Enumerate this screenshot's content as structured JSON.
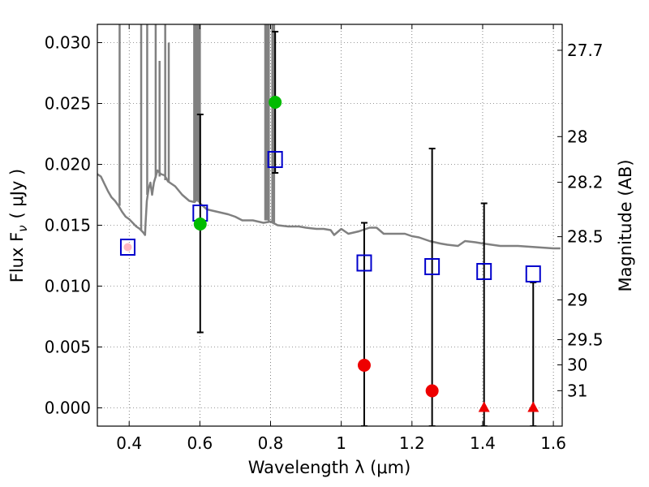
{
  "chart_data": {
    "type": "scatter",
    "xlabel": "Wavelength  λ (μm)",
    "ylabel": "Flux  F",
    "ylabel_sub": "ν",
    "ylabel_unit": "( μJy )",
    "ylabel_right": "Magnitude (AB)",
    "xlim": [
      0.31,
      1.625
    ],
    "ylim": [
      -0.0015,
      0.0315
    ],
    "x_ticks": [
      0.4,
      0.6,
      0.8,
      1.0,
      1.2,
      1.4,
      1.6
    ],
    "x_tick_labels": [
      "0.4",
      "0.6",
      "0.8",
      "1",
      "1.2",
      "1.4",
      "1.6"
    ],
    "y_ticks": [
      0.0,
      0.005,
      0.01,
      0.015,
      0.02,
      0.025,
      0.03
    ],
    "y_tick_labels": [
      "0.000",
      "0.005",
      "0.010",
      "0.015",
      "0.020",
      "0.025",
      "0.030"
    ],
    "right_ticks": [
      {
        "label": "27.7",
        "flux": 0.02937
      },
      {
        "label": "28",
        "flux": 0.02228
      },
      {
        "label": "28.2",
        "flux": 0.01853
      },
      {
        "label": "28.5",
        "flux": 0.01406
      },
      {
        "label": "29",
        "flux": 0.00887
      },
      {
        "label": "29.5",
        "flux": 0.0056
      },
      {
        "label": "30",
        "flux": 0.00353
      },
      {
        "label": "31",
        "flux": 0.00141
      }
    ],
    "grid": true,
    "colors": {
      "model": "#808080",
      "model_mag": "#0000cc",
      "green": "#00bb00",
      "red": "#ee0000",
      "error": "#000000"
    },
    "series": [
      {
        "name": "model spectrum",
        "style": "line",
        "color": "#808080",
        "x": [
          0.31,
          0.32,
          0.33,
          0.34,
          0.35,
          0.36,
          0.37,
          0.38,
          0.39,
          0.4,
          0.41,
          0.42,
          0.43,
          0.44,
          0.445,
          0.446,
          0.45,
          0.455,
          0.46,
          0.465,
          0.47,
          0.475,
          0.48,
          0.49,
          0.5,
          0.51,
          0.52,
          0.53,
          0.55,
          0.57,
          0.585,
          0.595,
          0.6,
          0.62,
          0.65,
          0.68,
          0.7,
          0.72,
          0.75,
          0.78,
          0.8,
          0.82,
          0.85,
          0.88,
          0.9,
          0.93,
          0.95,
          0.97,
          0.98,
          1.0,
          1.02,
          1.05,
          1.08,
          1.1,
          1.12,
          1.15,
          1.18,
          1.2,
          1.22,
          1.25,
          1.28,
          1.3,
          1.33,
          1.35,
          1.38,
          1.4,
          1.45,
          1.5,
          1.55,
          1.6,
          1.62
        ],
        "y": [
          0.0192,
          0.019,
          0.0184,
          0.0178,
          0.0173,
          0.017,
          0.0166,
          0.0161,
          0.0157,
          0.0155,
          0.0152,
          0.0149,
          0.0147,
          0.0144,
          0.0142,
          0.015,
          0.017,
          0.018,
          0.0185,
          0.0175,
          0.0185,
          0.019,
          0.0195,
          0.0192,
          0.0191,
          0.0186,
          0.0184,
          0.0182,
          0.0175,
          0.017,
          0.0169,
          0.0172,
          0.0168,
          0.0163,
          0.0161,
          0.0159,
          0.0157,
          0.0154,
          0.0154,
          0.0152,
          0.0153,
          0.015,
          0.0149,
          0.0149,
          0.0148,
          0.0147,
          0.0147,
          0.0146,
          0.0142,
          0.0147,
          0.0143,
          0.0145,
          0.0148,
          0.0148,
          0.0143,
          0.0143,
          0.0143,
          0.0141,
          0.014,
          0.0137,
          0.0135,
          0.0134,
          0.0133,
          0.0137,
          0.0136,
          0.0135,
          0.0133,
          0.0133,
          0.0132,
          0.0131,
          0.0131
        ]
      },
      {
        "name": "model spectrum emission lines",
        "style": "spikes",
        "color": "#808080",
        "lines": [
          {
            "x": 0.373,
            "from": 0.0166,
            "to": 0.0315
          },
          {
            "x": 0.434,
            "from": 0.0146,
            "to": 0.0315
          },
          {
            "x": 0.451,
            "from": 0.0175,
            "to": 0.0315
          },
          {
            "x": 0.475,
            "from": 0.0189,
            "to": 0.0315
          },
          {
            "x": 0.486,
            "from": 0.019,
            "to": 0.0285
          },
          {
            "x": 0.502,
            "from": 0.0187,
            "to": 0.0315
          },
          {
            "x": 0.512,
            "from": 0.0185,
            "to": 0.03
          },
          {
            "x": 0.584,
            "from": 0.017,
            "to": 0.0315
          },
          {
            "x": 0.588,
            "from": 0.017,
            "to": 0.0315
          },
          {
            "x": 0.591,
            "from": 0.017,
            "to": 0.0315
          },
          {
            "x": 0.596,
            "from": 0.0169,
            "to": 0.0315
          },
          {
            "x": 0.6,
            "from": 0.0169,
            "to": 0.0315
          },
          {
            "x": 0.785,
            "from": 0.0154,
            "to": 0.0315
          },
          {
            "x": 0.79,
            "from": 0.0154,
            "to": 0.0315
          },
          {
            "x": 0.795,
            "from": 0.0153,
            "to": 0.0315
          },
          {
            "x": 0.805,
            "from": 0.0153,
            "to": 0.0315
          },
          {
            "x": 0.81,
            "from": 0.0152,
            "to": 0.0315
          }
        ]
      },
      {
        "name": "model magnitudes",
        "style": "open-square",
        "color": "#0000cc",
        "points": [
          {
            "x": 0.396,
            "y": 0.0132
          },
          {
            "x": 0.601,
            "y": 0.016
          },
          {
            "x": 0.813,
            "y": 0.0204
          },
          {
            "x": 1.065,
            "y": 0.0119
          },
          {
            "x": 1.257,
            "y": 0.0116
          },
          {
            "x": 1.404,
            "y": 0.0112
          },
          {
            "x": 1.543,
            "y": 0.011
          }
        ]
      },
      {
        "name": "detections",
        "style": "filled-circle",
        "color": "#00bb00",
        "points": [
          {
            "x": 0.396,
            "y": 0.0132,
            "color": "#ffb6c1",
            "yerr_low": null,
            "yerr_high": null
          },
          {
            "x": 0.601,
            "y": 0.0151,
            "yerr_low": 0.0062,
            "yerr_high": 0.0241
          },
          {
            "x": 0.813,
            "y": 0.0251,
            "yerr_low": 0.0193,
            "yerr_high": 0.0309
          }
        ]
      },
      {
        "name": "non-detections",
        "style": "filled-circle",
        "color": "#ee0000",
        "points": [
          {
            "x": 1.065,
            "y": 0.0035,
            "yerr_low": -0.0015,
            "yerr_high": 0.0152
          },
          {
            "x": 1.257,
            "y": 0.0014,
            "yerr_low": -0.0015,
            "yerr_high": 0.0213
          }
        ]
      },
      {
        "name": "upper limits",
        "style": "filled-triangle",
        "color": "#ee0000",
        "points": [
          {
            "x": 1.404,
            "y": 0.0,
            "yerr_low": -0.0015,
            "yerr_high": 0.0168
          },
          {
            "x": 1.543,
            "y": 0.0,
            "yerr_low": -0.0015,
            "yerr_high": 0.0103
          }
        ]
      }
    ]
  }
}
